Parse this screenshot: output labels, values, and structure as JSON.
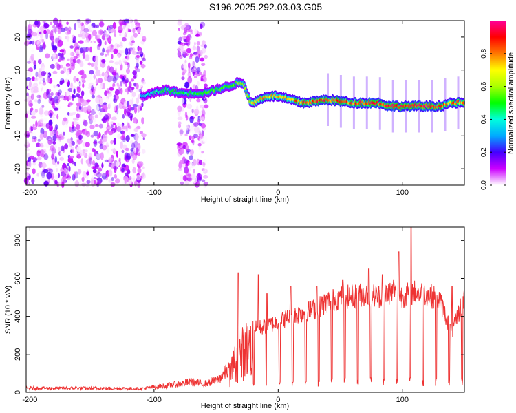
{
  "title": "S196.2025.292.03.03.G05",
  "chart_data": [
    {
      "type": "heatmap",
      "title": "S196.2025.292.03.03.G05",
      "xlabel": "Height of straight line (km)",
      "ylabel": "Frequency (Hz)",
      "xlim": [
        -203,
        150
      ],
      "ylim": [
        -25,
        25
      ],
      "xticks": [
        -200,
        -100,
        0,
        100
      ],
      "yticks": [
        -20,
        -10,
        0,
        10,
        20
      ],
      "colorbar": {
        "label": "Normalized spectral amplitude",
        "range": [
          0,
          1
        ],
        "ticks": [
          0.0,
          0.2,
          0.4,
          0.6,
          0.8
        ],
        "tick_labels": [
          "0.0",
          "0.2",
          "0.4",
          "0.6",
          "0.8"
        ],
        "colors": [
          "#ffffff",
          "#cc00ff",
          "#4400ff",
          "#00aaff",
          "#00ffdd",
          "#00ff00",
          "#aaff00",
          "#ffff00",
          "#ff7700",
          "#ff0000",
          "#ff0099"
        ]
      },
      "ridge": {
        "x": [
          -110,
          -100,
          -90,
          -80,
          -70,
          -60,
          -50,
          -40,
          -33,
          -28,
          -22,
          -20,
          -15,
          -10,
          0,
          10,
          20,
          30,
          40,
          50,
          60,
          70,
          80,
          90,
          100,
          110,
          120,
          130,
          140,
          150
        ],
        "freq": [
          2,
          3,
          4,
          3,
          3,
          3,
          4,
          5,
          6,
          6,
          0,
          0,
          1,
          2,
          2,
          1,
          0,
          0.5,
          1,
          0.5,
          0,
          0,
          0,
          -1,
          -1,
          -1,
          -1,
          -1,
          0,
          0
        ],
        "amplitude": [
          0.35,
          0.45,
          0.5,
          0.5,
          0.5,
          0.55,
          0.55,
          0.55,
          0.6,
          0.6,
          0.7,
          0.8,
          0.8,
          0.8,
          0.8,
          0.85,
          0.9,
          0.9,
          0.9,
          0.9,
          0.9,
          0.95,
          0.95,
          0.95,
          0.95,
          0.95,
          0.95,
          0.9,
          0.85,
          0.8
        ]
      }
    },
    {
      "type": "line",
      "xlabel": "Height of straight line (km)",
      "ylabel": "SNR (10 * v/v)",
      "xlim": [
        -203,
        150
      ],
      "ylim": [
        0,
        870
      ],
      "xticks": [
        -200,
        -100,
        0,
        100
      ],
      "yticks": [
        0,
        200,
        400,
        600,
        800
      ],
      "series": [
        {
          "name": "SNR",
          "color": "#ee3333",
          "envelope_x": [
            -203,
            -150,
            -110,
            -90,
            -80,
            -70,
            -60,
            -50,
            -40,
            -35,
            -30,
            -25,
            -20,
            -10,
            0,
            10,
            20,
            30,
            40,
            50,
            60,
            70,
            80,
            90,
            100,
            110,
            120,
            130,
            140,
            150
          ],
          "envelope_y": [
            22,
            22,
            20,
            35,
            45,
            55,
            45,
            60,
            120,
            210,
            280,
            330,
            340,
            360,
            380,
            410,
            430,
            450,
            490,
            510,
            520,
            530,
            520,
            540,
            520,
            540,
            530,
            500,
            320,
            520
          ],
          "peaks_x": [
            -32,
            -16,
            -9,
            10,
            31,
            52,
            73,
            84,
            93,
            97,
            107,
            140
          ],
          "peaks_y": [
            630,
            620,
            520,
            560,
            560,
            590,
            650,
            620,
            590,
            740,
            870,
            560
          ]
        }
      ]
    }
  ]
}
